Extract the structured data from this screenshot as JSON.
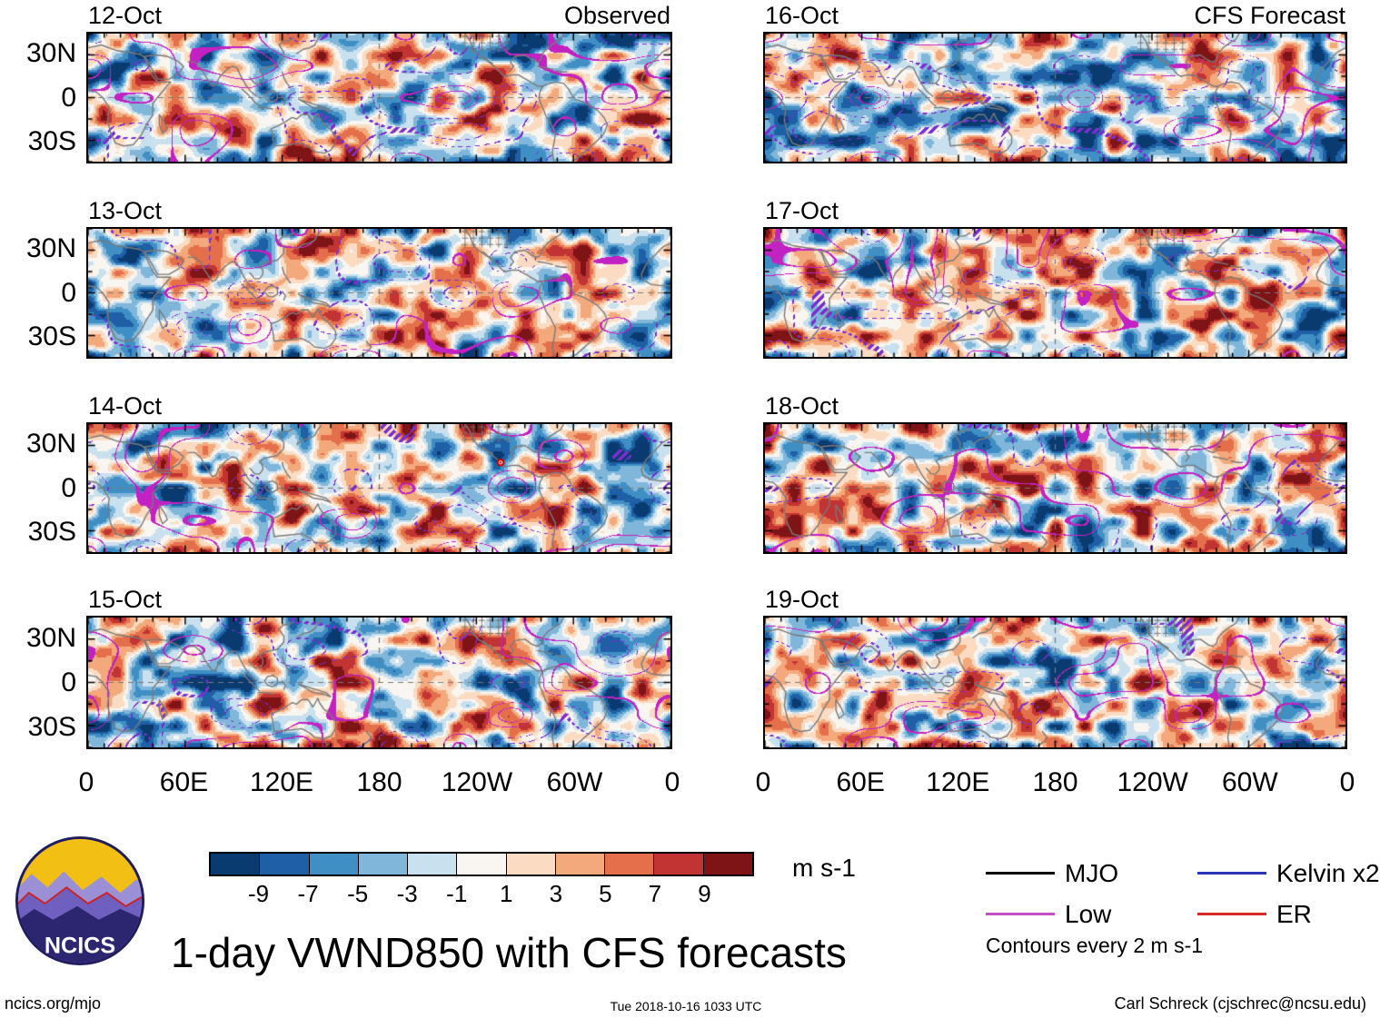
{
  "columns": [
    {
      "label": "Observed"
    },
    {
      "label": "CFS Forecast"
    }
  ],
  "panels": [
    {
      "date": "12-Oct"
    },
    {
      "date": "13-Oct"
    },
    {
      "date": "14-Oct"
    },
    {
      "date": "15-Oct"
    },
    {
      "date": "16-Oct"
    },
    {
      "date": "17-Oct"
    },
    {
      "date": "18-Oct"
    },
    {
      "date": "19-Oct"
    }
  ],
  "axes": {
    "y_ticks": [
      "30N",
      "0",
      "30S"
    ],
    "x_ticks": [
      "0",
      "60E",
      "120E",
      "180",
      "120W",
      "60W",
      "0"
    ]
  },
  "colorbar": {
    "tick_labels": [
      "-9",
      "-7",
      "-5",
      "-3",
      "-1",
      "1",
      "3",
      "5",
      "7",
      "9"
    ],
    "units": "m s-1"
  },
  "legend": {
    "items": [
      {
        "label": "MJO",
        "color": "#000000"
      },
      {
        "label": "Low",
        "color": "#c24fc2"
      },
      {
        "label": "Kelvin x2",
        "color": "#2c35b8"
      },
      {
        "label": "ER",
        "color": "#d42a2a"
      }
    ],
    "note": "Contours every 2 m s-1"
  },
  "title": "1-day VWND850 with CFS forecasts",
  "logo": {
    "text": "NCICS"
  },
  "footer": {
    "left": "ncics.org/mjo",
    "center": "Tue 2018-10-16 1033 UTC",
    "right": "Carl Schreck (cjschrec@ncsu.edu)"
  },
  "chart_data": {
    "type": "heatmap",
    "title": "1-day VWND850 with CFS forecasts",
    "variable": "VWND850 (850-hPa meridional wind), observed and CFS forecast",
    "units": "m s-1",
    "columns": [
      {
        "label": "Observed",
        "dates": [
          "12-Oct",
          "13-Oct",
          "14-Oct",
          "15-Oct"
        ]
      },
      {
        "label": "CFS Forecast",
        "dates": [
          "16-Oct",
          "17-Oct",
          "18-Oct",
          "19-Oct"
        ]
      }
    ],
    "fill_levels": [
      -9,
      -7,
      -5,
      -3,
      -1,
      1,
      3,
      5,
      7,
      9
    ],
    "fill_colors": [
      "#0a3b70",
      "#1e5fa5",
      "#3f8fc5",
      "#7fb6d9",
      "#c9e0ee",
      "#f9f6f1",
      "#fbdcc3",
      "#f4a97c",
      "#e4704b",
      "#c23334",
      "#7f1416"
    ],
    "lon_ticks": [
      "0",
      "60E",
      "120E",
      "180",
      "120W",
      "60W",
      "0"
    ],
    "lat_ticks": [
      "30N",
      "0",
      "30S"
    ],
    "lon_range_deg": [
      0,
      360
    ],
    "lat_range_deg": [
      -45,
      45
    ],
    "contour_overlays": [
      {
        "name": "MJO",
        "color": "#000000"
      },
      {
        "name": "Low",
        "color": "#c24fc2"
      },
      {
        "name": "Kelvin x2",
        "color": "#2c35b8"
      },
      {
        "name": "ER",
        "color": "#d42a2a"
      }
    ],
    "contour_interval_m_s": 2,
    "reference_lines": "dashed gray lines at equator and 180 longitude in every panel",
    "annotations": [
      {
        "type": "tropical-cyclone-symbol",
        "panel": "14-Oct",
        "color": "red",
        "approx_position": "105W, 18N"
      }
    ]
  }
}
